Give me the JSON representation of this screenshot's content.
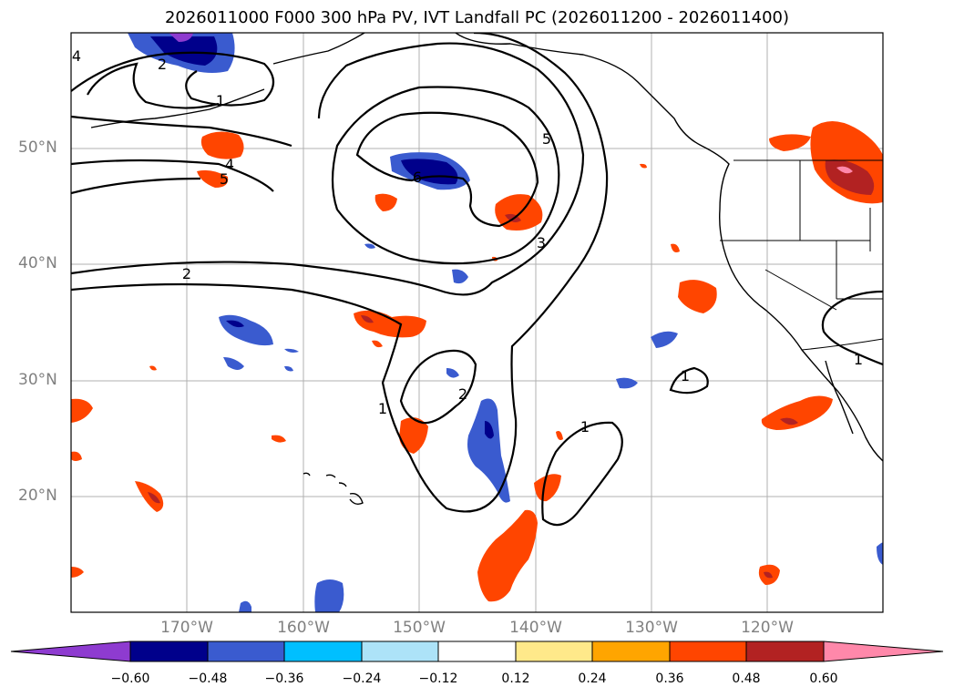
{
  "title": "2026011000 F000 300 hPa PV, IVT Landfall PC (2026011200 - 2026011400)",
  "map": {
    "lat_labels": [
      "50°N",
      "40°N",
      "30°N",
      "20°N"
    ],
    "lon_labels": [
      "170°W",
      "160°W",
      "150°W",
      "140°W",
      "130°W",
      "120°W"
    ],
    "contour_labels": [
      "4",
      "2",
      "1",
      "5",
      "4",
      "6",
      "5",
      "3",
      "2",
      "2",
      "1",
      "1",
      "1",
      "1"
    ]
  },
  "colorbar": {
    "ticks": [
      "−0.60",
      "−0.48",
      "−0.36",
      "−0.24",
      "−0.12",
      "0.12",
      "0.24",
      "0.36",
      "0.48",
      "0.60"
    ],
    "colors": [
      "#8e3bd0",
      "#00008b",
      "#3a5bcf",
      "#00bfff",
      "#ade3f8",
      "#ffffff",
      "#ffe98a",
      "#ffa500",
      "#ff4500",
      "#b22222",
      "#ff88aa"
    ]
  }
}
